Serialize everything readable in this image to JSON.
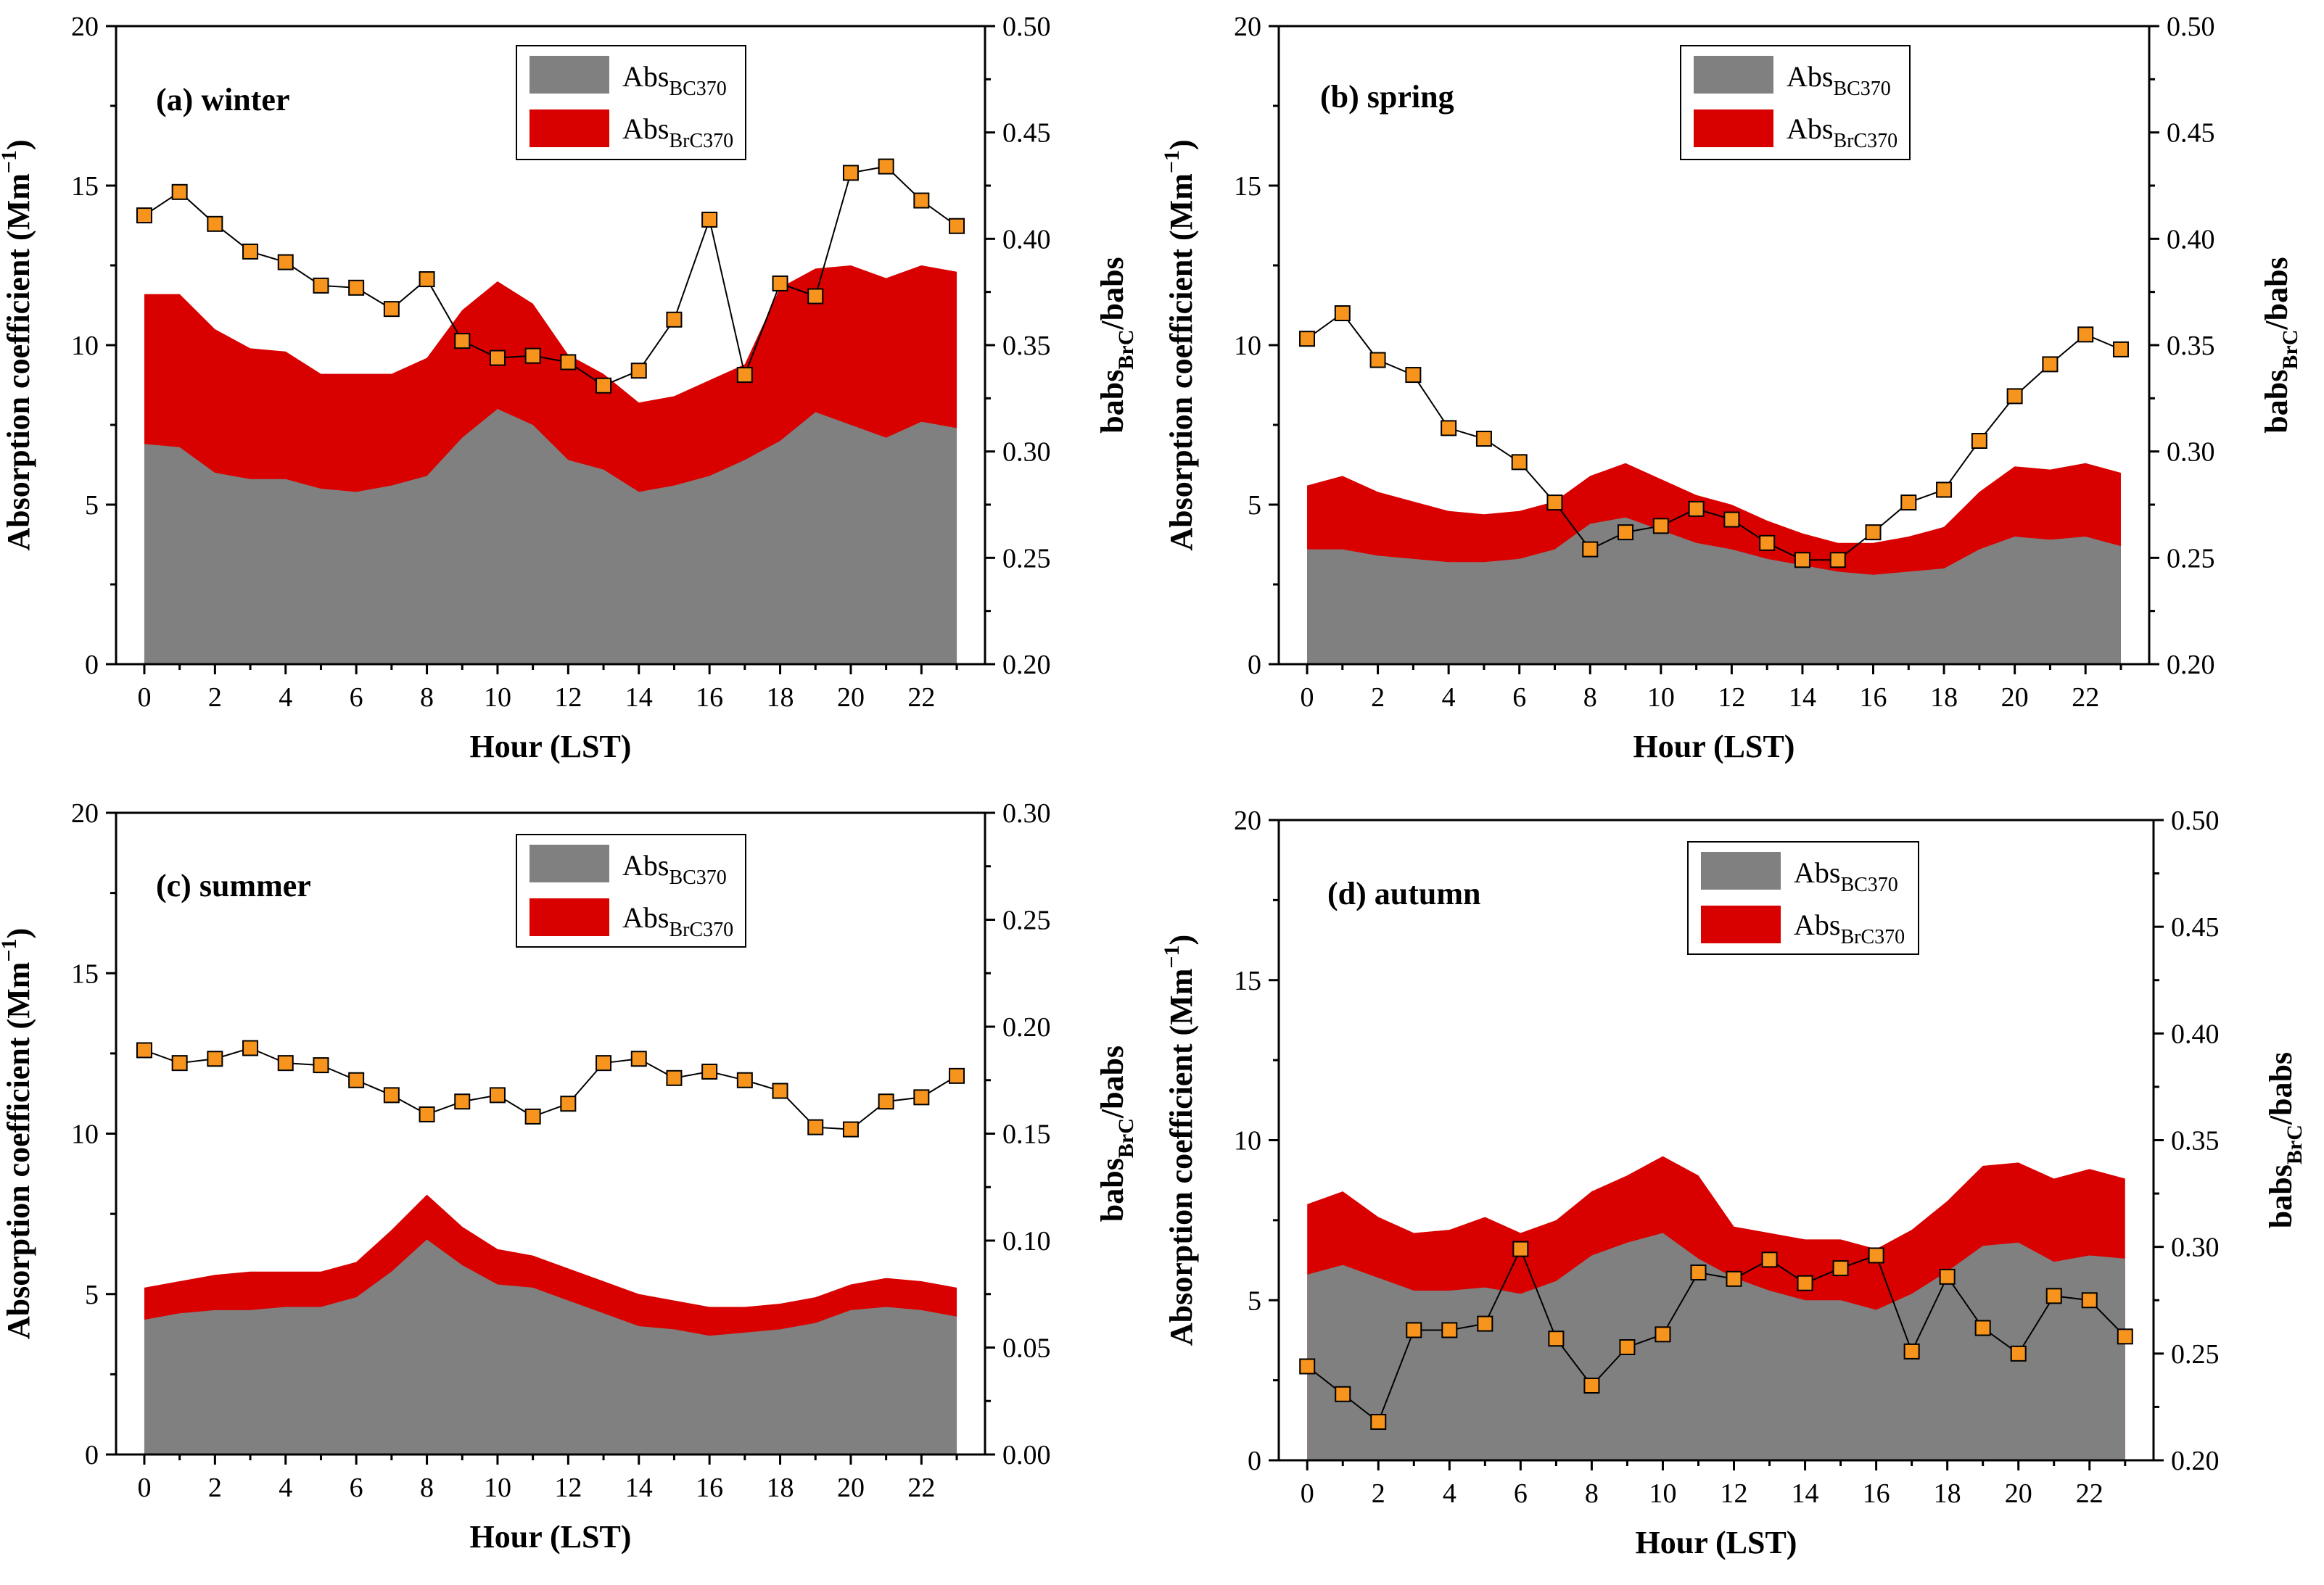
{
  "figure": {
    "left_axis_label": "Absorption coefficient (Mm",
    "right_axis_label_main": "babs",
    "right_axis_label_sub": "BrC",
    "right_axis_label_tail": "/babs",
    "x_axis_label": "Hour (LST)"
  },
  "colors": {
    "bc": "#808080",
    "brc": "#d90000",
    "ratio_marker": "#f7941d",
    "line": "#000000"
  },
  "chart_data": [
    {
      "type": "area",
      "title": "(a) winter",
      "legend": {
        "bc_main": "Abs",
        "bc_sub": "BC370",
        "brc_main": "Abs",
        "brc_sub": "BrC370",
        "placement": "top-center"
      },
      "xlabel": "Hour (LST)",
      "ylabel": "Absorption coefficient (Mm-1)",
      "y2label": "babsBrC/babs",
      "x": [
        0,
        1,
        2,
        3,
        4,
        5,
        6,
        7,
        8,
        9,
        10,
        11,
        12,
        13,
        14,
        15,
        16,
        17,
        18,
        19,
        20,
        21,
        22,
        23
      ],
      "xticks": [
        0,
        2,
        4,
        6,
        8,
        10,
        12,
        14,
        16,
        18,
        20,
        22
      ],
      "ylim": [
        0,
        20
      ],
      "yticks": [
        0,
        5,
        10,
        15,
        20
      ],
      "y2lim": [
        0.2,
        0.5
      ],
      "y2ticks": [
        0.2,
        0.25,
        0.3,
        0.35,
        0.4,
        0.45,
        0.5
      ],
      "series": [
        {
          "name": "AbsBC370",
          "values": [
            6.9,
            6.8,
            6.0,
            5.8,
            5.8,
            5.5,
            5.4,
            5.6,
            5.9,
            7.1,
            8.0,
            7.5,
            6.4,
            6.1,
            5.4,
            5.6,
            5.9,
            6.4,
            7.0,
            7.9,
            7.5,
            7.1,
            7.6,
            7.4
          ]
        },
        {
          "name": "AbsBC370+AbsBrC370",
          "values": [
            11.6,
            11.6,
            10.5,
            9.9,
            9.8,
            9.1,
            9.1,
            9.1,
            9.6,
            11.1,
            12.0,
            11.3,
            9.7,
            9.1,
            8.2,
            8.4,
            8.9,
            9.4,
            11.8,
            12.4,
            12.5,
            12.1,
            12.5,
            12.3
          ]
        },
        {
          "name": "babsBrC/babs",
          "values": [
            0.411,
            0.422,
            0.407,
            0.394,
            0.389,
            0.378,
            0.377,
            0.367,
            0.381,
            0.352,
            0.344,
            0.345,
            0.342,
            0.331,
            0.338,
            0.362,
            0.409,
            0.336,
            0.379,
            0.373,
            0.431,
            0.434,
            0.418,
            0.406
          ]
        }
      ]
    },
    {
      "type": "area",
      "title": "(b) spring",
      "legend": {
        "bc_main": "Abs",
        "bc_sub": "BC370",
        "brc_main": "Abs",
        "brc_sub": "BrC370",
        "placement": "top-center"
      },
      "xlabel": "Hour (LST)",
      "ylabel": "Absorption coefficient (Mm-1)",
      "y2label": "babsBrC/babs",
      "x": [
        0,
        1,
        2,
        3,
        4,
        5,
        6,
        7,
        8,
        9,
        10,
        11,
        12,
        13,
        14,
        15,
        16,
        17,
        18,
        19,
        20,
        21,
        22,
        23
      ],
      "xticks": [
        0,
        2,
        4,
        6,
        8,
        10,
        12,
        14,
        16,
        18,
        20,
        22
      ],
      "ylim": [
        0,
        20
      ],
      "yticks": [
        0,
        5,
        10,
        15,
        20
      ],
      "y2lim": [
        0.2,
        0.5
      ],
      "y2ticks": [
        0.2,
        0.25,
        0.3,
        0.35,
        0.4,
        0.45,
        0.5
      ],
      "series": [
        {
          "name": "AbsBC370",
          "values": [
            3.6,
            3.6,
            3.4,
            3.3,
            3.2,
            3.2,
            3.3,
            3.6,
            4.4,
            4.6,
            4.2,
            3.8,
            3.6,
            3.3,
            3.1,
            2.9,
            2.8,
            2.9,
            3.0,
            3.6,
            4.0,
            3.9,
            4.0,
            3.7
          ]
        },
        {
          "name": "AbsBC370+AbsBrC370",
          "values": [
            5.6,
            5.9,
            5.4,
            5.1,
            4.8,
            4.7,
            4.8,
            5.1,
            5.9,
            6.3,
            5.8,
            5.3,
            5.0,
            4.5,
            4.1,
            3.8,
            3.8,
            4.0,
            4.3,
            5.4,
            6.2,
            6.1,
            6.3,
            6.0
          ]
        },
        {
          "name": "babsBrC/babs",
          "values": [
            0.353,
            0.365,
            0.343,
            0.336,
            0.311,
            0.306,
            0.295,
            0.276,
            0.254,
            0.262,
            0.265,
            0.273,
            0.268,
            0.257,
            0.249,
            0.249,
            0.262,
            0.276,
            0.282,
            0.305,
            0.326,
            0.341,
            0.355,
            0.348
          ]
        }
      ]
    },
    {
      "type": "area",
      "title": "(c) summer",
      "legend": {
        "bc_main": "Abs",
        "bc_sub": "BC370",
        "brc_main": "Abs",
        "brc_sub": "BrC370",
        "placement": "top-center"
      },
      "xlabel": "Hour (LST)",
      "ylabel": "Absorption coefficient (Mm-1)",
      "y2label": "babsBrC/babs",
      "x": [
        0,
        1,
        2,
        3,
        4,
        5,
        6,
        7,
        8,
        9,
        10,
        11,
        12,
        13,
        14,
        15,
        16,
        17,
        18,
        19,
        20,
        21,
        22,
        23
      ],
      "xticks": [
        0,
        2,
        4,
        6,
        8,
        10,
        12,
        14,
        16,
        18,
        20,
        22
      ],
      "ylim": [
        0,
        20
      ],
      "yticks": [
        0,
        5,
        10,
        15,
        20
      ],
      "y2lim": [
        0.0,
        0.3
      ],
      "y2ticks": [
        0.0,
        0.05,
        0.1,
        0.15,
        0.2,
        0.25,
        0.3
      ],
      "series": [
        {
          "name": "AbsBC370",
          "values": [
            4.2,
            4.4,
            4.5,
            4.5,
            4.6,
            4.6,
            4.9,
            5.7,
            6.7,
            5.9,
            5.3,
            5.2,
            4.8,
            4.4,
            4.0,
            3.9,
            3.7,
            3.8,
            3.9,
            4.1,
            4.5,
            4.6,
            4.5,
            4.3
          ]
        },
        {
          "name": "AbsBC370+AbsBrC370",
          "values": [
            5.2,
            5.4,
            5.6,
            5.7,
            5.7,
            5.7,
            6.0,
            7.0,
            8.1,
            7.1,
            6.4,
            6.2,
            5.8,
            5.4,
            5.0,
            4.8,
            4.6,
            4.6,
            4.7,
            4.9,
            5.3,
            5.5,
            5.4,
            5.2
          ]
        },
        {
          "name": "babsBrC/babs",
          "values": [
            0.189,
            0.183,
            0.185,
            0.19,
            0.183,
            0.182,
            0.175,
            0.168,
            0.159,
            0.165,
            0.168,
            0.158,
            0.164,
            0.183,
            0.185,
            0.176,
            0.179,
            0.175,
            0.17,
            0.153,
            0.152,
            0.165,
            0.167,
            0.177
          ]
        }
      ]
    },
    {
      "type": "area",
      "title": "(d) autumn",
      "legend": {
        "bc_main": "Abs",
        "bc_sub": "BC370",
        "brc_main": "Abs",
        "brc_sub": "BrC370",
        "placement": "top-center"
      },
      "xlabel": "Hour (LST)",
      "ylabel": "Absorption coefficient (Mm-1)",
      "y2label": "babsBrC/babs",
      "x": [
        0,
        1,
        2,
        3,
        4,
        5,
        6,
        7,
        8,
        9,
        10,
        11,
        12,
        13,
        14,
        15,
        16,
        17,
        18,
        19,
        20,
        21,
        22,
        23
      ],
      "xticks": [
        0,
        2,
        4,
        6,
        8,
        10,
        12,
        14,
        16,
        18,
        20,
        22
      ],
      "ylim": [
        0,
        20
      ],
      "yticks": [
        0,
        5,
        10,
        15,
        20
      ],
      "y2lim": [
        0.2,
        0.5
      ],
      "y2ticks": [
        0.2,
        0.25,
        0.3,
        0.35,
        0.4,
        0.45,
        0.5
      ],
      "series": [
        {
          "name": "AbsBC370",
          "values": [
            5.8,
            6.1,
            5.7,
            5.3,
            5.3,
            5.4,
            5.2,
            5.6,
            6.4,
            6.8,
            7.1,
            6.3,
            5.7,
            5.3,
            5.0,
            5.0,
            4.7,
            5.2,
            5.9,
            6.7,
            6.8,
            6.2,
            6.4,
            6.3
          ]
        },
        {
          "name": "AbsBC370+AbsBrC370",
          "values": [
            8.0,
            8.4,
            7.6,
            7.1,
            7.2,
            7.6,
            7.1,
            7.5,
            8.4,
            8.9,
            9.5,
            8.9,
            7.3,
            7.1,
            6.9,
            6.9,
            6.6,
            7.2,
            8.1,
            9.2,
            9.3,
            8.8,
            9.1,
            8.8
          ]
        },
        {
          "name": "babsBrC/babs",
          "values": [
            0.244,
            0.231,
            0.218,
            0.261,
            0.261,
            0.264,
            0.299,
            0.257,
            0.235,
            0.253,
            0.259,
            0.288,
            0.285,
            0.294,
            0.283,
            0.29,
            0.296,
            0.251,
            0.286,
            0.262,
            0.25,
            0.277,
            0.275,
            0.258
          ]
        }
      ]
    }
  ]
}
